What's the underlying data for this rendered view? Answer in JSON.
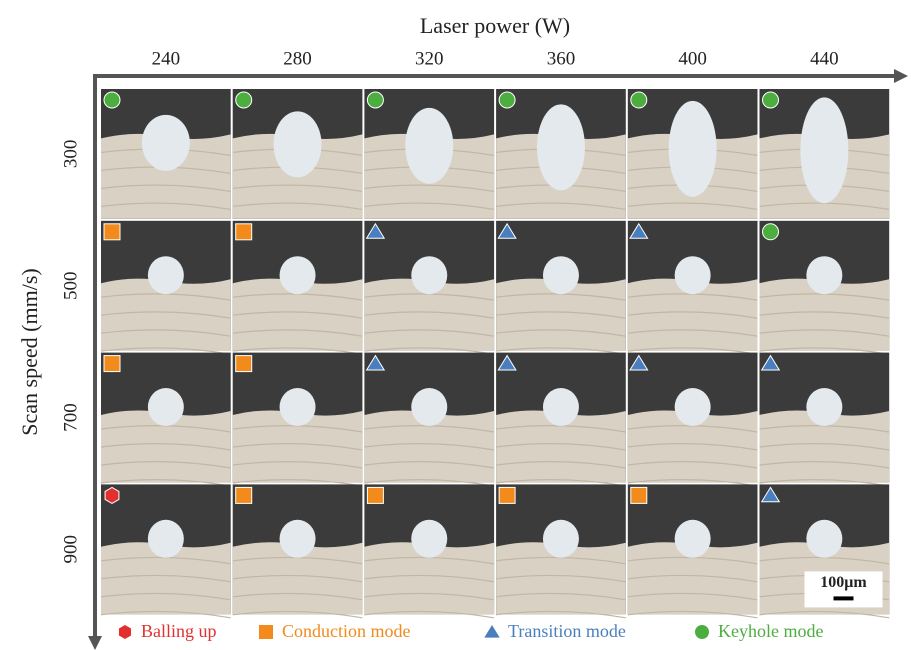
{
  "x_axis": {
    "title": "Laser power (W)",
    "labels": [
      "240",
      "280",
      "320",
      "360",
      "400",
      "440"
    ]
  },
  "y_axis": {
    "title": "Scan speed (mm/s)",
    "labels": [
      "300",
      "500",
      "700",
      "900"
    ]
  },
  "cells": [
    [
      3,
      3,
      3,
      3,
      3,
      3
    ],
    [
      1,
      1,
      2,
      2,
      2,
      3
    ],
    [
      1,
      1,
      2,
      2,
      2,
      2
    ],
    [
      0,
      1,
      1,
      1,
      1,
      2
    ]
  ],
  "legend": [
    {
      "label": "Balling up",
      "color": "#e2302f",
      "shape": "hexagon"
    },
    {
      "label": "Conduction mode",
      "color": "#f28a1c",
      "shape": "square"
    },
    {
      "label": "Transition mode",
      "color": "#4a7fbf",
      "shape": "triangle"
    },
    {
      "label": "Keyhole mode",
      "color": "#4cae3f",
      "shape": "circle"
    }
  ],
  "scale_bar": "100μm"
}
